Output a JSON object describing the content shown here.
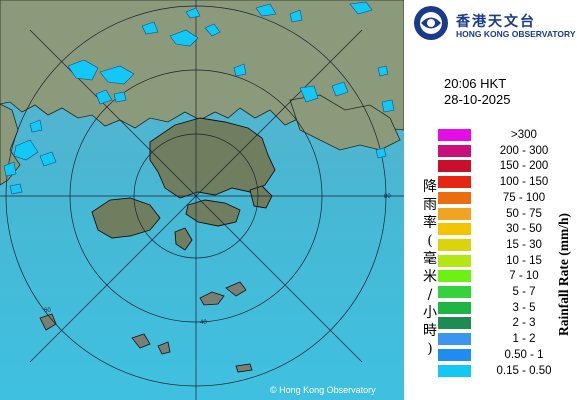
{
  "observatory": {
    "name_cn": "香港天文台",
    "name_en": "HONG KONG OBSERVATORY"
  },
  "timestamp": {
    "time": "20:06 HKT",
    "date": "28-10-2025"
  },
  "axis_label_cn": "降雨率(毫米/小時)",
  "axis_label_en": "Rainfall Rate (mm/h)",
  "legend": [
    {
      "label": ">300",
      "color": "#e60ce6"
    },
    {
      "label": "200 - 300",
      "color": "#c8107a"
    },
    {
      "label": "150 - 200",
      "color": "#c80f2c"
    },
    {
      "label": "100 - 150",
      "color": "#e52612"
    },
    {
      "label": "75 - 100",
      "color": "#ea6d10"
    },
    {
      "label": "50 - 75",
      "color": "#f0a420"
    },
    {
      "label": "30 - 50",
      "color": "#f5c400"
    },
    {
      "label": "15 - 30",
      "color": "#dcd40a"
    },
    {
      "label": "10 - 15",
      "color": "#b4e614"
    },
    {
      "label": "7 - 10",
      "color": "#6ef014"
    },
    {
      "label": "5 - 7",
      "color": "#34d23c"
    },
    {
      "label": "3 - 5",
      "color": "#1eb446"
    },
    {
      "label": "2 - 3",
      "color": "#1e8c50"
    },
    {
      "label": "1 - 2",
      "color": "#3c96f0"
    },
    {
      "label": "0.50 - 1",
      "color": "#1e8cf0"
    },
    {
      "label": "0.15 - 0.50",
      "color": "#14c8f5"
    }
  ],
  "range_rings": [
    {
      "label": "40"
    },
    {
      "label": "60"
    },
    {
      "label": "80"
    }
  ],
  "copyright": "© Hong Kong Observatory",
  "colors": {
    "sea": "#4fb8d4",
    "land": "#8a9878",
    "rain_light": "#14c8f5",
    "brand": "#1a3a8a"
  }
}
